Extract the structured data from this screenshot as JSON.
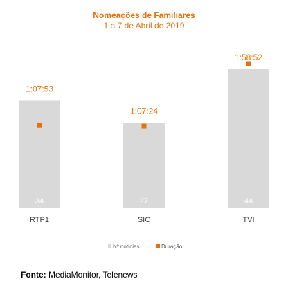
{
  "colors": {
    "accent": "#E8700A",
    "bar": "#D9D9D9",
    "bar_label": "#FFFFFF",
    "axis_text": "#404040",
    "legend_text": "#595959"
  },
  "chart_data": {
    "type": "bar",
    "title": "Nomeações de Familiares",
    "subtitle": "1 a 7 de Abril de 2019",
    "categories": [
      "RTP1",
      "SIC",
      "TVI"
    ],
    "series": [
      {
        "name": "Nº notícias",
        "type": "bar",
        "values": [
          34,
          27,
          44
        ]
      },
      {
        "name": "Duração",
        "type": "marker",
        "values": [
          "1:07:53",
          "1:07:24",
          "1:58:52"
        ],
        "seconds": [
          4073,
          4044,
          7132
        ]
      }
    ],
    "legend": [
      "Nº notícias",
      "Duração"
    ],
    "legend_position": "bottom",
    "grid": false
  },
  "source": {
    "label": "Fonte:",
    "text": "MediaMonitor, Telenews"
  }
}
